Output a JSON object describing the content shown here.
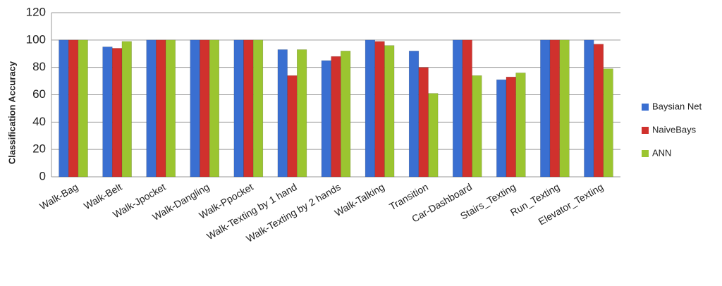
{
  "chart_data": {
    "type": "bar",
    "y_label": "Classification Accuracy",
    "categories": [
      "Walk-Bag",
      "Walk-Belt",
      "Walk-Jpocket",
      "Walk-Dangling",
      "Walk-Ppocket",
      "Walk-Texting by 1 hand",
      "Walk-Texting by 2 hands",
      "Walk-Talking",
      "Transition",
      "Car-Dashboard",
      "Stairs_Texting",
      "Run_Texting",
      "Elevator_Texting"
    ],
    "series": [
      {
        "name": "Baysian Net",
        "color": "#3a6fd1",
        "values": [
          100,
          95,
          100,
          100,
          100,
          93,
          85,
          100,
          92,
          100,
          71,
          100,
          100
        ]
      },
      {
        "name": "NaiveBays",
        "color": "#d0312d",
        "values": [
          100,
          94,
          100,
          100,
          100,
          74,
          88,
          99,
          80,
          100,
          73,
          100,
          97
        ]
      },
      {
        "name": "ANN",
        "color": "#9bc530",
        "values": [
          100,
          99,
          100,
          100,
          100,
          93,
          92,
          96,
          61,
          74,
          76,
          100,
          79
        ]
      }
    ],
    "ylim": [
      0,
      120
    ],
    "yticks": [
      0,
      20,
      40,
      60,
      80,
      100,
      120
    ],
    "grid": true,
    "legend": "right"
  }
}
